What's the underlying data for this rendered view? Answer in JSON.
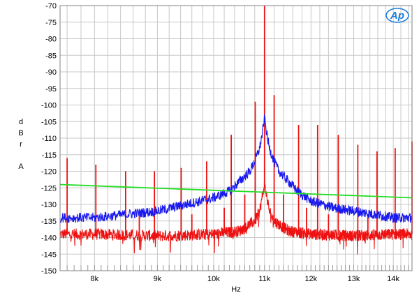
{
  "logo": {
    "text": "Ap"
  },
  "chart_data": {
    "type": "line",
    "xlabel": "Hz",
    "ylabel_lines": [
      "d",
      "B",
      "r",
      "",
      "A"
    ],
    "xlim": [
      7500,
      14500
    ],
    "ylim": [
      -150,
      -70
    ],
    "x_scale": "log",
    "grid": true,
    "yticks": [
      -70,
      -75,
      -80,
      -85,
      -90,
      -95,
      -100,
      -105,
      -110,
      -115,
      -120,
      -125,
      -130,
      -135,
      -140,
      -145,
      -150
    ],
    "ytick_labels": [
      "-70",
      "-75",
      "-80",
      "-85",
      "-90",
      "-95",
      "-100",
      "-105",
      "-110",
      "-115",
      "-120",
      "-125",
      "-130",
      "-135",
      "-140",
      "-145",
      "-150"
    ],
    "xticks": [
      8000,
      9000,
      10000,
      11000,
      12000,
      13000,
      14000
    ],
    "xtick_labels": [
      "8k",
      "9k",
      "10k",
      "11k",
      "12k",
      "13k",
      "14k"
    ],
    "colors": {
      "blue": "#1a1aee",
      "red": "#ee1111",
      "green": "#22dd22",
      "grid": "#c8c8c8",
      "frame": "#808080"
    },
    "series": [
      {
        "color": "#1a1aee",
        "x": [
          7500,
          8000,
          8500,
          9000,
          9500,
          10000,
          10300,
          10500,
          10700,
          10800,
          10900,
          10950,
          11000,
          11050,
          11100,
          11200,
          11300,
          11500,
          11700,
          12000,
          12500,
          13000,
          13500,
          14000,
          14500
        ],
        "y": [
          -134,
          -134,
          -133,
          -132,
          -130,
          -128,
          -126,
          -123,
          -120,
          -117,
          -113,
          -109,
          -104,
          -109,
          -113,
          -117,
          -120,
          -123,
          -126,
          -129,
          -131,
          -132,
          -133,
          -134,
          -134
        ]
      },
      {
        "color": "#ee1111",
        "x": [
          7500,
          8000,
          9000,
          10000,
          10500,
          10800,
          10900,
          10950,
          11000,
          11050,
          11100,
          11200,
          11500,
          12000,
          13000,
          14000,
          14500
        ],
        "y": [
          -139,
          -139,
          -139.5,
          -139,
          -138,
          -135,
          -132,
          -128,
          -124,
          -128,
          -132,
          -135,
          -138,
          -139,
          -139.5,
          -139,
          -139
        ],
        "peaks": [
          {
            "x": 11000,
            "y": -70
          },
          {
            "x": 10810,
            "y": -99
          },
          {
            "x": 11200,
            "y": -97
          },
          {
            "x": 11725,
            "y": -106
          },
          {
            "x": 10335,
            "y": -109
          },
          {
            "x": 12150,
            "y": -106
          },
          {
            "x": 9870,
            "y": -117
          },
          {
            "x": 12630,
            "y": -109
          },
          {
            "x": 9410,
            "y": -119
          },
          {
            "x": 13100,
            "y": -112
          },
          {
            "x": 8950,
            "y": -120
          },
          {
            "x": 13580,
            "y": -114
          },
          {
            "x": 8480,
            "y": -120
          },
          {
            "x": 14050,
            "y": -113
          },
          {
            "x": 8020,
            "y": -118
          },
          {
            "x": 7600,
            "y": -116
          },
          {
            "x": 14500,
            "y": -111
          },
          {
            "x": 10600,
            "y": -127
          },
          {
            "x": 11400,
            "y": -127
          },
          {
            "x": 10200,
            "y": -131
          },
          {
            "x": 11900,
            "y": -131
          },
          {
            "x": 9600,
            "y": -133
          },
          {
            "x": 12400,
            "y": -133
          },
          {
            "x": 8700,
            "y": -133
          },
          {
            "x": 13350,
            "y": -133
          }
        ]
      },
      {
        "color": "#22dd22",
        "x": [
          7500,
          14500
        ],
        "y": [
          -124,
          -128
        ]
      }
    ]
  }
}
